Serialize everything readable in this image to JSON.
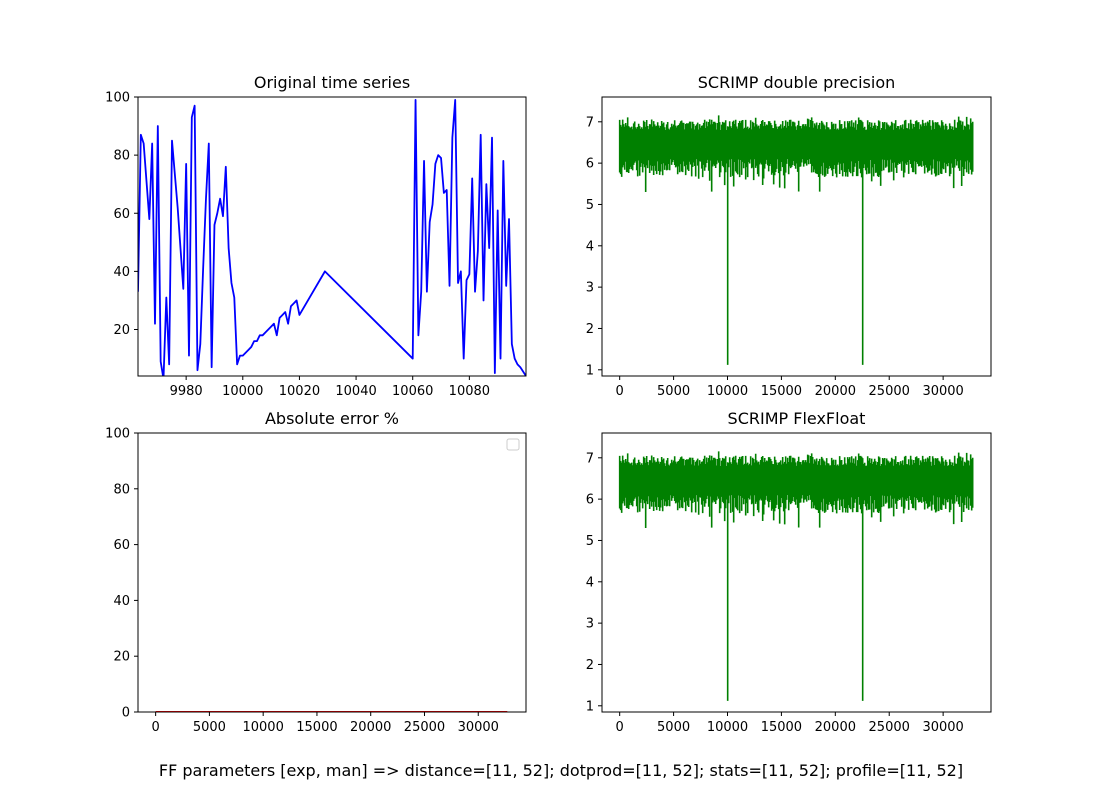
{
  "figure": {
    "suptitle": "FF parameters [exp, man] => distance=[11, 52]; dotprod=[11, 52]; stats=[11, 52]; profile=[11, 52]"
  },
  "chart_data": [
    {
      "id": "original",
      "type": "line",
      "title": "Original time series",
      "color": "#0000ff",
      "xlim": [
        9963,
        10100
      ],
      "ylim": [
        4,
        100
      ],
      "xticks": [
        9980,
        10000,
        10020,
        10040,
        10060,
        10080
      ],
      "yticks": [
        20,
        40,
        60,
        80,
        100
      ],
      "x": [
        9963,
        9964,
        9965,
        9967,
        9968,
        9969,
        9970,
        9971,
        9972,
        9973,
        9974,
        9975,
        9977,
        9979,
        9980,
        9981,
        9982,
        9983,
        9984,
        9985,
        9986,
        9987,
        9988,
        9989,
        9990,
        9991,
        9992,
        9993,
        9994,
        9995,
        9996,
        9997,
        9998,
        9999,
        10000,
        10001,
        10002,
        10003,
        10004,
        10005,
        10006,
        10007,
        10008,
        10009,
        10010,
        10011,
        10012,
        10013,
        10014,
        10015,
        10016,
        10017,
        10018,
        10019,
        10020,
        10029,
        10060,
        10061,
        10062,
        10063,
        10064,
        10065,
        10066,
        10067,
        10068,
        10069,
        10070,
        10071,
        10072,
        10073,
        10074,
        10075,
        10076,
        10077,
        10078,
        10079,
        10080,
        10081,
        10082,
        10083,
        10084,
        10085,
        10086,
        10087,
        10088,
        10089,
        10090,
        10091,
        10092,
        10093,
        10094,
        10095,
        10096,
        10097,
        10098,
        10100
      ],
      "y": [
        33,
        87,
        84,
        58,
        84,
        22,
        90,
        9,
        3,
        31,
        8,
        85,
        62,
        34,
        77,
        11,
        93,
        97,
        6,
        15,
        41,
        65,
        84,
        7,
        56,
        60,
        65,
        59,
        76,
        48,
        36,
        31,
        8,
        11,
        11,
        12,
        13,
        14,
        16,
        16,
        18,
        18,
        19,
        20,
        21,
        22,
        18,
        24,
        25,
        26,
        22,
        28,
        29,
        30,
        25,
        40,
        10,
        99,
        18,
        33,
        78,
        33,
        57,
        63,
        77,
        80,
        79,
        67,
        68,
        35,
        86,
        99,
        36,
        40,
        10,
        37,
        39,
        72,
        33,
        47,
        87,
        30,
        70,
        48,
        86,
        5,
        61,
        10,
        78,
        35,
        58,
        15,
        10,
        8,
        7,
        4
      ]
    },
    {
      "id": "scrimp-double",
      "type": "line",
      "title": "SCRIMP double precision",
      "color": "#008000",
      "xlim": [
        -1640,
        34440
      ],
      "ylim": [
        0.85,
        7.6
      ],
      "xticks": [
        0,
        5000,
        10000,
        15000,
        20000,
        25000,
        30000
      ],
      "yticks": [
        1,
        2,
        3,
        4,
        5,
        6,
        7
      ],
      "n_points": 32700,
      "band_low": 5.9,
      "band_high": 7.05,
      "spike_min": 5.3,
      "spike_max": 7.3,
      "dips": [
        {
          "x": 10000,
          "y": 1.12
        },
        {
          "x": 22500,
          "y": 1.12
        }
      ]
    },
    {
      "id": "abs-error",
      "type": "line",
      "title": "Absolute error %",
      "color": "#ff0000",
      "xlim": [
        -1640,
        34440
      ],
      "ylim": [
        0,
        100
      ],
      "xticks": [
        0,
        5000,
        10000,
        15000,
        20000,
        25000,
        30000
      ],
      "yticks": [
        0,
        20,
        40,
        60,
        80,
        100
      ],
      "x": [
        0,
        32700
      ],
      "y": [
        0,
        0
      ],
      "legend": "top-right"
    },
    {
      "id": "scrimp-flex",
      "type": "line",
      "title": "SCRIMP FlexFloat",
      "color": "#008000",
      "xlim": [
        -1640,
        34440
      ],
      "ylim": [
        0.85,
        7.6
      ],
      "xticks": [
        0,
        5000,
        10000,
        15000,
        20000,
        25000,
        30000
      ],
      "yticks": [
        1,
        2,
        3,
        4,
        5,
        6,
        7
      ],
      "n_points": 32700,
      "band_low": 5.9,
      "band_high": 7.05,
      "spike_min": 5.3,
      "spike_max": 7.3,
      "dips": [
        {
          "x": 10000,
          "y": 1.12
        },
        {
          "x": 22500,
          "y": 1.12
        }
      ]
    }
  ]
}
